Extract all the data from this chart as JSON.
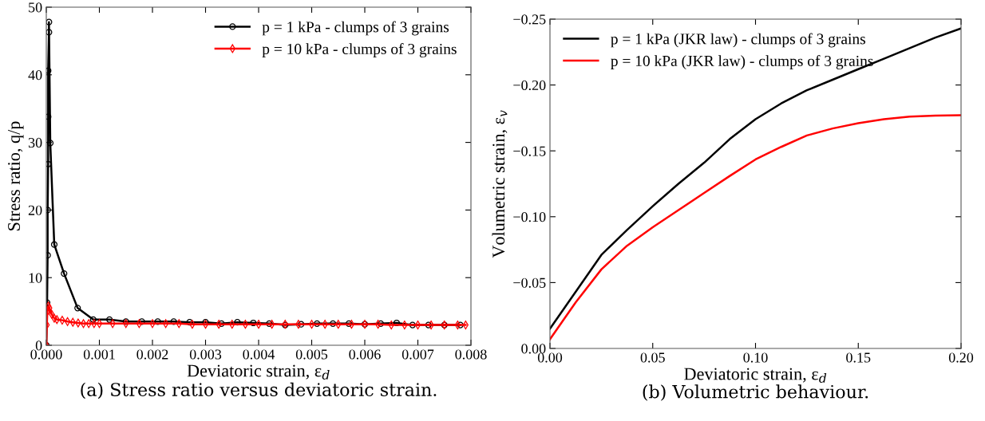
{
  "chart_data": [
    {
      "type": "line",
      "title": "(a) Stress ratio versus deviatoric strain.",
      "xlabel": "Deviatoric strain, ε$_{d}$",
      "ylabel": "Stress ratio, q/p",
      "xlim": [
        0,
        0.008
      ],
      "ylim": [
        0,
        50
      ],
      "xticks": [
        {
          "value": 0,
          "label": "0.000"
        },
        {
          "value": 0.001,
          "label": "0.001"
        },
        {
          "value": 0.002,
          "label": "0.002"
        },
        {
          "value": 0.003,
          "label": "0.003"
        },
        {
          "value": 0.004,
          "label": "0.004"
        },
        {
          "value": 0.005,
          "label": "0.005"
        },
        {
          "value": 0.006,
          "label": "0.006"
        },
        {
          "value": 0.007,
          "label": "0.007"
        },
        {
          "value": 0.008,
          "label": "0.008"
        }
      ],
      "yticks": [
        0,
        10,
        20,
        30,
        40,
        50
      ],
      "grid": false,
      "legend": "top right",
      "series": [
        {
          "name": "p = 1 kPa - clumps of 3 grains",
          "color": "#000000",
          "marker": "circle",
          "x": [
            0,
            1.5e-05,
            2.5e-05,
            2.5e-05,
            3.5e-05,
            3.5e-05,
            3.5e-05,
            5e-05,
            5e-05,
            7.5e-05,
            0.00015,
            0.000335,
            0.00059,
            0.000885,
            0.00119,
            0.0015,
            0.0018,
            0.0021,
            0.0024,
            0.0027,
            0.003,
            0.0033,
            0.0036,
            0.0039,
            0.0042,
            0.0045,
            0.0048,
            0.0051,
            0.0054,
            0.0057,
            0.006,
            0.0063,
            0.0066,
            0.0069,
            0.0072,
            0.0075,
            0.0078
          ],
          "values": [
            0,
            6.3,
            13.3,
            20.0,
            26.8,
            33.8,
            40.6,
            46.3,
            47.8,
            29.9,
            14.9,
            10.6,
            5.5,
            3.8,
            3.8,
            3.5,
            3.5,
            3.5,
            3.5,
            3.4,
            3.4,
            3.2,
            3.4,
            3.3,
            3.2,
            3.0,
            3.1,
            3.2,
            3.2,
            3.2,
            3.1,
            3.2,
            3.3,
            3.0,
            3.0,
            3.0,
            3.0
          ]
        },
        {
          "name": "p = 10 kPa - clumps of 3 grains",
          "color": "#ff0000",
          "marker": "diamond",
          "x": [
            0,
            1e-05,
            2e-05,
            4e-05,
            6e-05,
            0.0001,
            0.00015,
            0.0002,
            0.0003,
            0.0004,
            0.0005,
            0.0006,
            0.0007,
            0.0008,
            0.0009,
            0.001,
            0.00125,
            0.0015,
            0.00175,
            0.002,
            0.00225,
            0.0025,
            0.00275,
            0.003,
            0.00325,
            0.0035,
            0.00375,
            0.004,
            0.00425,
            0.0045,
            0.00475,
            0.005,
            0.00525,
            0.0055,
            0.00575,
            0.006,
            0.00625,
            0.0065,
            0.00675,
            0.007,
            0.00725,
            0.0075,
            0.00775,
            0.0079
          ],
          "values": [
            0,
            3.0,
            5.0,
            5.8,
            5.5,
            4.6,
            4.0,
            3.8,
            3.7,
            3.5,
            3.4,
            3.3,
            3.2,
            3.2,
            3.2,
            3.2,
            3.2,
            3.2,
            3.2,
            3.2,
            3.2,
            3.2,
            3.1,
            3.1,
            3.1,
            3.1,
            3.1,
            3.1,
            3.1,
            3.1,
            3.1,
            3.1,
            3.1,
            3.1,
            3.1,
            3.1,
            3.1,
            3.0,
            3.0,
            3.0,
            3.0,
            3.0,
            3.0,
            3.0
          ]
        }
      ]
    },
    {
      "type": "line",
      "title": "(b) Volumetric behaviour.",
      "xlabel": "Deviatoric strain, ε$_{d}$",
      "ylabel": "Volumetric strain, ε$_{v}$",
      "xlim": [
        0,
        0.2
      ],
      "ylim": [
        0,
        -0.25
      ],
      "xticks": [
        {
          "value": 0,
          "label": "0.00"
        },
        {
          "value": 0.05,
          "label": "0.05"
        },
        {
          "value": 0.1,
          "label": "0.10"
        },
        {
          "value": 0.15,
          "label": "0.15"
        },
        {
          "value": 0.2,
          "label": "0.20"
        }
      ],
      "yticks": [
        {
          "value": 0,
          "label": "0.00"
        },
        {
          "value": -0.05,
          "label": "−0.05"
        },
        {
          "value": -0.1,
          "label": "−0.10"
        },
        {
          "value": -0.15,
          "label": "−0.15"
        },
        {
          "value": -0.2,
          "label": "−0.20"
        },
        {
          "value": -0.25,
          "label": "−0.25"
        }
      ],
      "grid": false,
      "legend": "top left",
      "marker": "none",
      "series": [
        {
          "name": "p = 1 kPa (JKR law) - clumps of 3 grains",
          "color": "#000000",
          "x": [
            0,
            0.0125,
            0.025,
            0.0375,
            0.05,
            0.0625,
            0.075,
            0.0875,
            0.1,
            0.1125,
            0.125,
            0.1375,
            0.15,
            0.1625,
            0.175,
            0.1875,
            0.2
          ],
          "values": [
            -0.015,
            -0.043,
            -0.071,
            -0.09,
            -0.108,
            -0.125,
            -0.141,
            -0.159,
            -0.174,
            -0.186,
            -0.196,
            -0.204,
            -0.212,
            -0.22,
            -0.228,
            -0.236,
            -0.243
          ]
        },
        {
          "name": "p = 10 kPa (JKR law) - clumps of 3 grains",
          "color": "#ff0000",
          "x": [
            0,
            0.0125,
            0.025,
            0.0375,
            0.05,
            0.0625,
            0.075,
            0.0875,
            0.1,
            0.1125,
            0.125,
            0.1375,
            0.15,
            0.1625,
            0.175,
            0.1875,
            0.2
          ],
          "values": [
            -0.007,
            -0.035,
            -0.06,
            -0.078,
            -0.092,
            -0.105,
            -0.118,
            -0.131,
            -0.1435,
            -0.153,
            -0.1617,
            -0.167,
            -0.171,
            -0.174,
            -0.176,
            -0.1767,
            -0.177
          ]
        }
      ]
    }
  ]
}
